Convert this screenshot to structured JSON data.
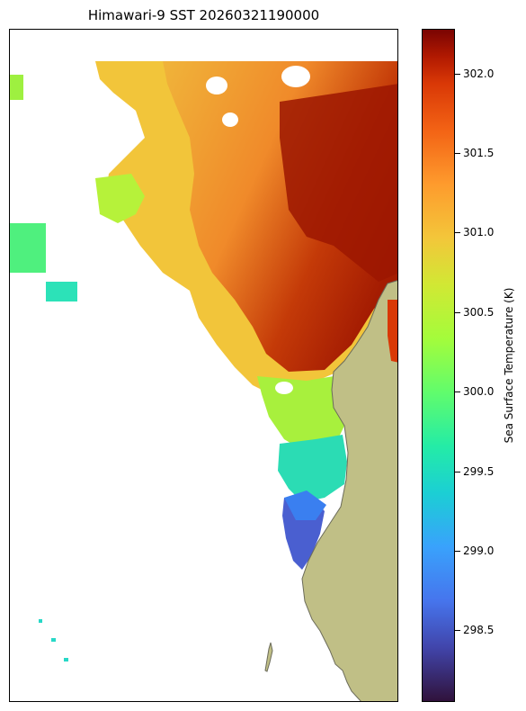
{
  "title": "Himawari-9 SST 20260321190000",
  "colorbar": {
    "label": "Sea Surface Temperature (K)",
    "ticks": [
      "302.0",
      "301.5",
      "301.0",
      "300.5",
      "300.0",
      "299.5",
      "299.0",
      "298.5"
    ],
    "range": [
      298.05,
      302.28
    ],
    "colormap": "turbo"
  },
  "map": {
    "land_color": "#c0bf86",
    "coast_color": "#6b6b5a",
    "nodata_color": "#ffffff",
    "regions": [
      {
        "id": "northeast-warm",
        "sst_k": 302.1
      },
      {
        "id": "central-warm",
        "sst_k": 301.5
      },
      {
        "id": "north-band",
        "sst_k": 300.9
      },
      {
        "id": "west-band",
        "sst_k": 300.5
      },
      {
        "id": "mid-coast",
        "sst_k": 300.0
      },
      {
        "id": "south-coast",
        "sst_k": 299.4
      },
      {
        "id": "southern-tip",
        "sst_k": 298.7
      }
    ]
  }
}
